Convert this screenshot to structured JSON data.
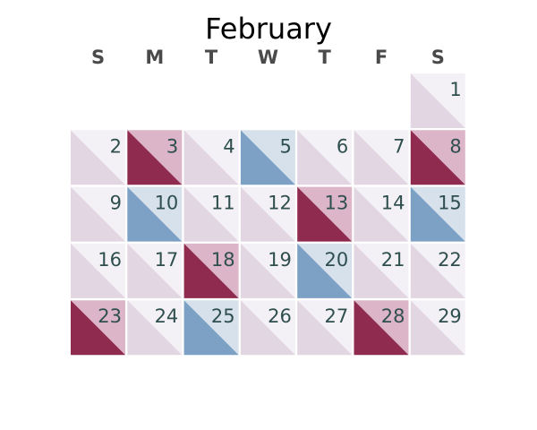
{
  "chart_data": {
    "type": "heatmap",
    "title": "February",
    "weekday_labels": [
      "S",
      "M",
      "T",
      "W",
      "T",
      "F",
      "S"
    ],
    "first_weekday_index": 6,
    "colors": {
      "low_lower": "#e1d6e1",
      "low_upper": "#f4f1f6",
      "red_lower": "#8e2b4e",
      "red_upper": "#dcb5c8",
      "blue_lower": "#7da1c4",
      "blue_upper": "#d6e1ec"
    },
    "days": [
      {
        "day": "1",
        "level": "low"
      },
      {
        "day": "2",
        "level": "low"
      },
      {
        "day": "3",
        "level": "red"
      },
      {
        "day": "4",
        "level": "low"
      },
      {
        "day": "5",
        "level": "blue"
      },
      {
        "day": "6",
        "level": "low"
      },
      {
        "day": "7",
        "level": "low"
      },
      {
        "day": "8",
        "level": "red"
      },
      {
        "day": "9",
        "level": "low"
      },
      {
        "day": "10",
        "level": "blue"
      },
      {
        "day": "11",
        "level": "low"
      },
      {
        "day": "12",
        "level": "low"
      },
      {
        "day": "13",
        "level": "red"
      },
      {
        "day": "14",
        "level": "low"
      },
      {
        "day": "15",
        "level": "blue"
      },
      {
        "day": "16",
        "level": "low"
      },
      {
        "day": "17",
        "level": "low"
      },
      {
        "day": "18",
        "level": "red"
      },
      {
        "day": "19",
        "level": "low"
      },
      {
        "day": "20",
        "level": "blue"
      },
      {
        "day": "21",
        "level": "low"
      },
      {
        "day": "22",
        "level": "low"
      },
      {
        "day": "23",
        "level": "red"
      },
      {
        "day": "24",
        "level": "low"
      },
      {
        "day": "25",
        "level": "blue"
      },
      {
        "day": "26",
        "level": "low"
      },
      {
        "day": "27",
        "level": "low"
      },
      {
        "day": "28",
        "level": "red"
      },
      {
        "day": "29",
        "level": "low"
      }
    ]
  }
}
